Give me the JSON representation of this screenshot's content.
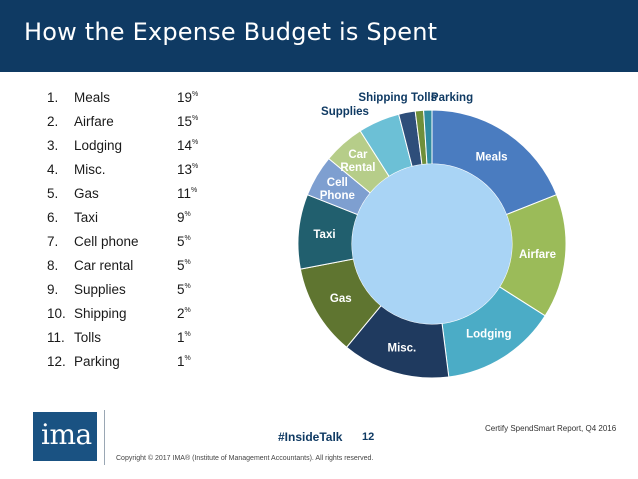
{
  "header": {
    "title": "How the Expense Budget is Spent"
  },
  "list": [
    {
      "num": "1.",
      "name": "Meals",
      "value": "19",
      "unit": "%"
    },
    {
      "num": "2.",
      "name": "Airfare",
      "value": "15",
      "unit": "%"
    },
    {
      "num": "3.",
      "name": "Lodging",
      "value": "14",
      "unit": "%"
    },
    {
      "num": "4.",
      "name": "Misc.",
      "value": "13",
      "unit": "%"
    },
    {
      "num": "5.",
      "name": "Gas",
      "value": "11",
      "unit": "%"
    },
    {
      "num": "6.",
      "name": "Taxi",
      "value": "9",
      "unit": "%"
    },
    {
      "num": "7.",
      "name": "Cell phone",
      "value": "5",
      "unit": "%"
    },
    {
      "num": "8.",
      "name": "Car rental",
      "value": "5",
      "unit": "%"
    },
    {
      "num": "9.",
      "name": "Supplies",
      "value": "5",
      "unit": "%"
    },
    {
      "num": "10.",
      "name": "Shipping",
      "value": "2",
      "unit": "%"
    },
    {
      "num": "11.",
      "name": "Tolls",
      "value": "1",
      "unit": "%"
    },
    {
      "num": "12.",
      "name": "Parking",
      "value": "1",
      "unit": "%"
    }
  ],
  "chart_data": {
    "type": "pie",
    "variant": "donut",
    "title": "",
    "slices": [
      {
        "label": "Meals",
        "value": 19,
        "color": "#4a7cc0",
        "label_color": "#ffffff"
      },
      {
        "label": "Airfare",
        "value": 15,
        "color": "#9bbb59",
        "label_color": "#ffffff"
      },
      {
        "label": "Lodging",
        "value": 14,
        "color": "#4bacc6",
        "label_color": "#ffffff"
      },
      {
        "label": "Misc.",
        "value": 13,
        "color": "#1f3a5f",
        "label_color": "#ffffff"
      },
      {
        "label": "Gas",
        "value": 11,
        "color": "#5f7530",
        "label_color": "#ffffff"
      },
      {
        "label": "Taxi",
        "value": 9,
        "color": "#215f6e",
        "label_color": "#ffffff"
      },
      {
        "label": "Cell Phone",
        "value": 5,
        "color": "#7e9fd0",
        "label_color": "#ffffff"
      },
      {
        "label": "Car Rental",
        "value": 5,
        "color": "#b6cd89",
        "label_color": "#ffffff"
      },
      {
        "label": "Supplies",
        "value": 5,
        "color": "#6cc0d6",
        "label_color": "#0f3a63"
      },
      {
        "label": "Shipping",
        "value": 2,
        "color": "#2e4e7a",
        "label_color": "#0f3a63"
      },
      {
        "label": "Tolls",
        "value": 1,
        "color": "#6f8f3a",
        "label_color": "#0f3a63"
      },
      {
        "label": "Parking",
        "value": 1,
        "color": "#2f8ca1",
        "label_color": "#0f3a63"
      }
    ],
    "hole_color": "#a9d4f5"
  },
  "footer": {
    "hashtag": "#InsideTalk",
    "page": "12",
    "source": "Certify SpendSmart Report, Q4 2016",
    "copyright": "Copyright © 2017 IMA® (Institute of Management Accountants). All rights reserved.",
    "logo_text": "ima"
  }
}
